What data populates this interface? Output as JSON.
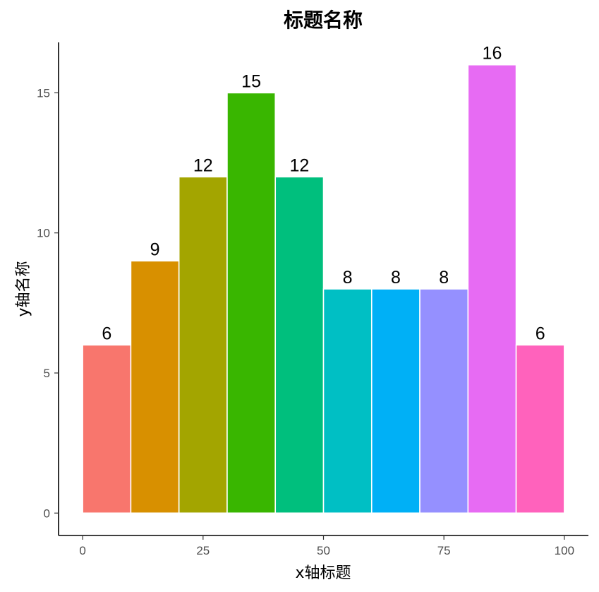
{
  "chart_data": {
    "type": "bar",
    "title": "标题名称",
    "xlabel": "x轴标题",
    "ylabel": "y轴名称",
    "x_bins": [
      [
        0,
        10
      ],
      [
        10,
        20
      ],
      [
        20,
        30
      ],
      [
        30,
        40
      ],
      [
        40,
        50
      ],
      [
        50,
        60
      ],
      [
        60,
        70
      ],
      [
        70,
        80
      ],
      [
        80,
        90
      ],
      [
        90,
        100
      ]
    ],
    "values": [
      6,
      9,
      12,
      15,
      12,
      8,
      8,
      8,
      16,
      6
    ],
    "colors": [
      "#F8766D",
      "#D89000",
      "#A3A500",
      "#39B600",
      "#00BF7D",
      "#00BFC4",
      "#00B0F6",
      "#9590FF",
      "#E76BF3",
      "#FF62BC"
    ],
    "xlim": [
      -5,
      105
    ],
    "ylim": [
      -0.8,
      16.8
    ],
    "x_ticks": [
      0,
      25,
      50,
      75,
      100
    ],
    "x_tick_labels": [
      "0",
      "25",
      "50",
      "75",
      "100"
    ],
    "y_ticks": [
      0,
      5,
      10,
      15
    ],
    "y_tick_labels": [
      "0",
      "5",
      "10",
      "15"
    ],
    "data_labels": [
      "6",
      "9",
      "12",
      "15",
      "12",
      "8",
      "8",
      "8",
      "16",
      "6"
    ],
    "grid": false,
    "legend": "none"
  }
}
